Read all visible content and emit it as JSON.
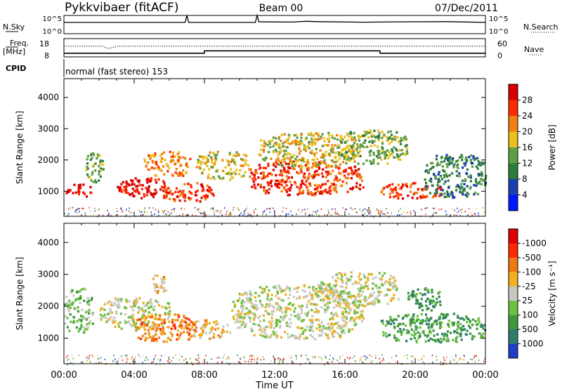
{
  "header": {
    "station": "Pykkvibaer (fitACF)",
    "beam": "Beam 00",
    "date": "07/Dec/2011"
  },
  "chart_data": [
    {
      "type": "line",
      "panel": "noise",
      "left_label": "N.Sky",
      "right_label": "N.Search",
      "left_ticks": [
        "10^5",
        "10^0"
      ],
      "right_ticks": [
        "10^5",
        "10^0"
      ],
      "series": [
        {
          "name": "N.Sky",
          "style": "solid",
          "x": [
            0,
            3,
            6.9,
            7,
            7.1,
            10.9,
            11,
            11.1,
            13,
            13.8,
            14.4,
            17,
            19,
            21.8,
            24
          ],
          "y": [
            0.62,
            0.62,
            0.62,
            1.0,
            0.62,
            0.62,
            1.0,
            0.65,
            0.64,
            0.68,
            0.66,
            0.63,
            0.65,
            0.66,
            0.62
          ]
        }
      ]
    },
    {
      "type": "line",
      "panel": "frequency",
      "left_label": "Freq.",
      "left_unit": "[MHz]",
      "right_label": "Nave",
      "left_ticks": [
        "18",
        "8"
      ],
      "right_ticks": [
        "60",
        "0"
      ],
      "series": [
        {
          "name": "Freq.",
          "style": "solid",
          "x": [
            0,
            7.99,
            8,
            17.99,
            18,
            24
          ],
          "y": [
            10,
            10,
            11.3,
            11.3,
            10,
            10
          ]
        },
        {
          "name": "Nave",
          "style": "dotted",
          "x": [
            0,
            2.2,
            2.5,
            2.8,
            3.0,
            24
          ],
          "y": [
            35,
            35,
            28,
            31,
            35,
            35
          ]
        }
      ]
    },
    {
      "type": "table",
      "panel": "cpid",
      "label": "CPID",
      "text": "normal (fast stereo) 153"
    },
    {
      "type": "heatmap",
      "panel": "power",
      "ylabel": "Slant Range [km]",
      "yticks": [
        1000,
        2000,
        3000,
        4000
      ],
      "ylim": [
        200,
        4600
      ],
      "xlim": [
        0,
        24
      ],
      "colorbar": {
        "label": "Power [dB]",
        "ticks": [
          "4",
          "8",
          "12",
          "16",
          "20",
          "24",
          "28"
        ],
        "colors": [
          "#0018ff",
          "#1b3fae",
          "#2d7d3a",
          "#5f9e46",
          "#e9c01c",
          "#f08010",
          "#ff2a00",
          "#d80000"
        ]
      },
      "regions": [
        {
          "t": [
            0.0,
            1.6
          ],
          "r": [
            850,
            1250
          ],
          "level": 7
        },
        {
          "t": [
            1.2,
            2.2
          ],
          "r": [
            1300,
            2300
          ],
          "level": 3
        },
        {
          "t": [
            3.0,
            5.8
          ],
          "r": [
            800,
            1500
          ],
          "level": 7
        },
        {
          "t": [
            4.5,
            7.2
          ],
          "r": [
            1500,
            2300
          ],
          "level": 5
        },
        {
          "t": [
            5.5,
            8.5
          ],
          "r": [
            700,
            1300
          ],
          "level": 6
        },
        {
          "t": [
            7.5,
            10.5
          ],
          "r": [
            1400,
            2300
          ],
          "level": 4
        },
        {
          "t": [
            10.5,
            17.0
          ],
          "r": [
            900,
            2000
          ],
          "level": 6
        },
        {
          "t": [
            11.0,
            16.8
          ],
          "r": [
            1800,
            2900
          ],
          "level": 4
        },
        {
          "t": [
            15.5,
            19.5
          ],
          "r": [
            1900,
            3000
          ],
          "level": 3
        },
        {
          "t": [
            18.0,
            21.5
          ],
          "r": [
            800,
            1300
          ],
          "level": 6
        },
        {
          "t": [
            20.5,
            24.0
          ],
          "r": [
            800,
            2200
          ],
          "level": 2
        }
      ]
    },
    {
      "type": "heatmap",
      "panel": "velocity",
      "ylabel": "Slant Range [km]",
      "yticks": [
        1000,
        2000,
        3000,
        4000
      ],
      "ylim": [
        200,
        4600
      ],
      "xlim": [
        0,
        24
      ],
      "xticks": [
        "00:00",
        "04:00",
        "08:00",
        "12:00",
        "16:00",
        "20:00",
        "00:00"
      ],
      "xlabel": "Time UT",
      "colorbar": {
        "label": "Velocity [m s⁻¹]",
        "ticks": [
          "1000",
          "500",
          "100",
          "25",
          "-25",
          "-100",
          "-500",
          "-1000"
        ],
        "colors": [
          "#1f3fc8",
          "#2f7d6a",
          "#3d9a3a",
          "#6cc040",
          "#c8c8c0",
          "#f0b020",
          "#f07a10",
          "#ff2a00",
          "#e00000"
        ]
      },
      "regions": [
        {
          "t": [
            0.0,
            1.6
          ],
          "r": [
            1200,
            2600
          ],
          "level": 3
        },
        {
          "t": [
            2.0,
            6.0
          ],
          "r": [
            1300,
            2300
          ],
          "level": 4
        },
        {
          "t": [
            4.0,
            7.5
          ],
          "r": [
            900,
            1800
          ],
          "level": 6
        },
        {
          "t": [
            5.0,
            5.8
          ],
          "r": [
            2400,
            3100
          ],
          "level": 5
        },
        {
          "t": [
            7.0,
            9.5
          ],
          "r": [
            1000,
            1600
          ],
          "level": 5
        },
        {
          "t": [
            9.5,
            17.0
          ],
          "r": [
            1000,
            2700
          ],
          "level": 4
        },
        {
          "t": [
            14.5,
            19.0
          ],
          "r": [
            2000,
            3100
          ],
          "level": 4
        },
        {
          "t": [
            18.0,
            24.0
          ],
          "r": [
            900,
            1800
          ],
          "level": 2
        },
        {
          "t": [
            19.5,
            21.5
          ],
          "r": [
            1900,
            2600
          ],
          "level": 2
        }
      ]
    }
  ]
}
